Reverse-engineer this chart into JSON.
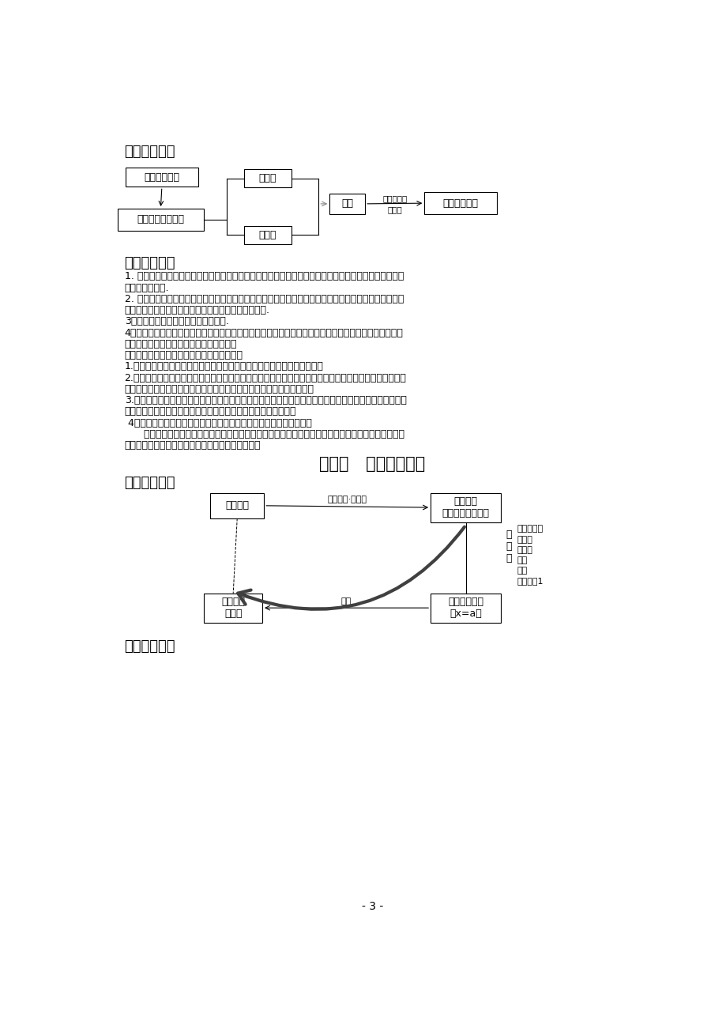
{
  "bg_color": "#ffffff",
  "page_bg": "#ffffff",
  "title1": "一．知识框架",
  "title2": "二．知识概念",
  "chapter_title": "第三章   一元一次方程",
  "title3": "一．知识框架",
  "title4": "二．知识概念",
  "page_number": "- 3 -",
  "body_lines": [
    "1. 单项式：在代数式中，若只含有乘法（包括乘方）运算。或虽含有除法运算，但除式中不含字母的一类",
    "代数式叫单项式.",
    "2. 单项式的系数与次数：单项式中不为零的数字因数，叫单项式的数字系数，简称单项式的系数；系数不",
    "为零时，单项式中所有字母指数的和，叫单项式的次数.",
    "3．多项式：几个单项式的和叫多项式.",
    "4．多项式的项数与次数：多项式中所含单项式的个数就是多项式的项数，每个单项式叫多项式的项；多项",
    "式里，次数最高项的次数叫多项式的次数。",
    "通过本章学习，应使学生达到以下学习目标：",
    "1.理解并掌握单项式、多项式、整式等概念，弄清它们之间的区别与联系。",
    "2.理解同类项概念，掌握合并同类项的方法，掌握去括号时符号的变化规律，能正确地进行同类项的合并和",
    "去括号。在准确判断、正确合并同类项的基础上，进行整式的加减运算。",
    "3.理解整式中的字母表示数，整式的加减运算建立在数的运算基础上；理解合并同类项、去括号的依据是分",
    "配律；理解数的运算律和运算性质在整式的加减运算中仍然成立。",
    " 4．能够分析实际问题中的数量关系，并用还有字母的式子表示出来。",
    "      在本章学习中，教师可以通过让学生小组讨论、合作学习等方式，经历概念的形成过程，初步培养学",
    "生观察、分析、抽象、概括等思维能力和应用意识。"
  ],
  "d1_box1": "用字母表示数",
  "d1_box2": "列式表示数量关系",
  "d1_box3": "单项式",
  "d1_box4": "多项式",
  "d1_box5": "整式",
  "d1_box6": "整式加减运算",
  "d1_label1": "合并同类项",
  "d1_label2": "去括号",
  "d2_box1": "实际问题",
  "d2_box2": "数学问题\n（一元一次方程）",
  "d2_box3": "实际问题\n的答案",
  "d2_box4": "数学问题的解\n（x=a）",
  "d2_label_top": "设未知数·列方程",
  "d2_label_bottom": "检验",
  "d2_side_vert": "解\n方\n程",
  "d2_side_detail": "一般步骤：\n去分母\n去括号\n移项\n合并\n系数化为1"
}
